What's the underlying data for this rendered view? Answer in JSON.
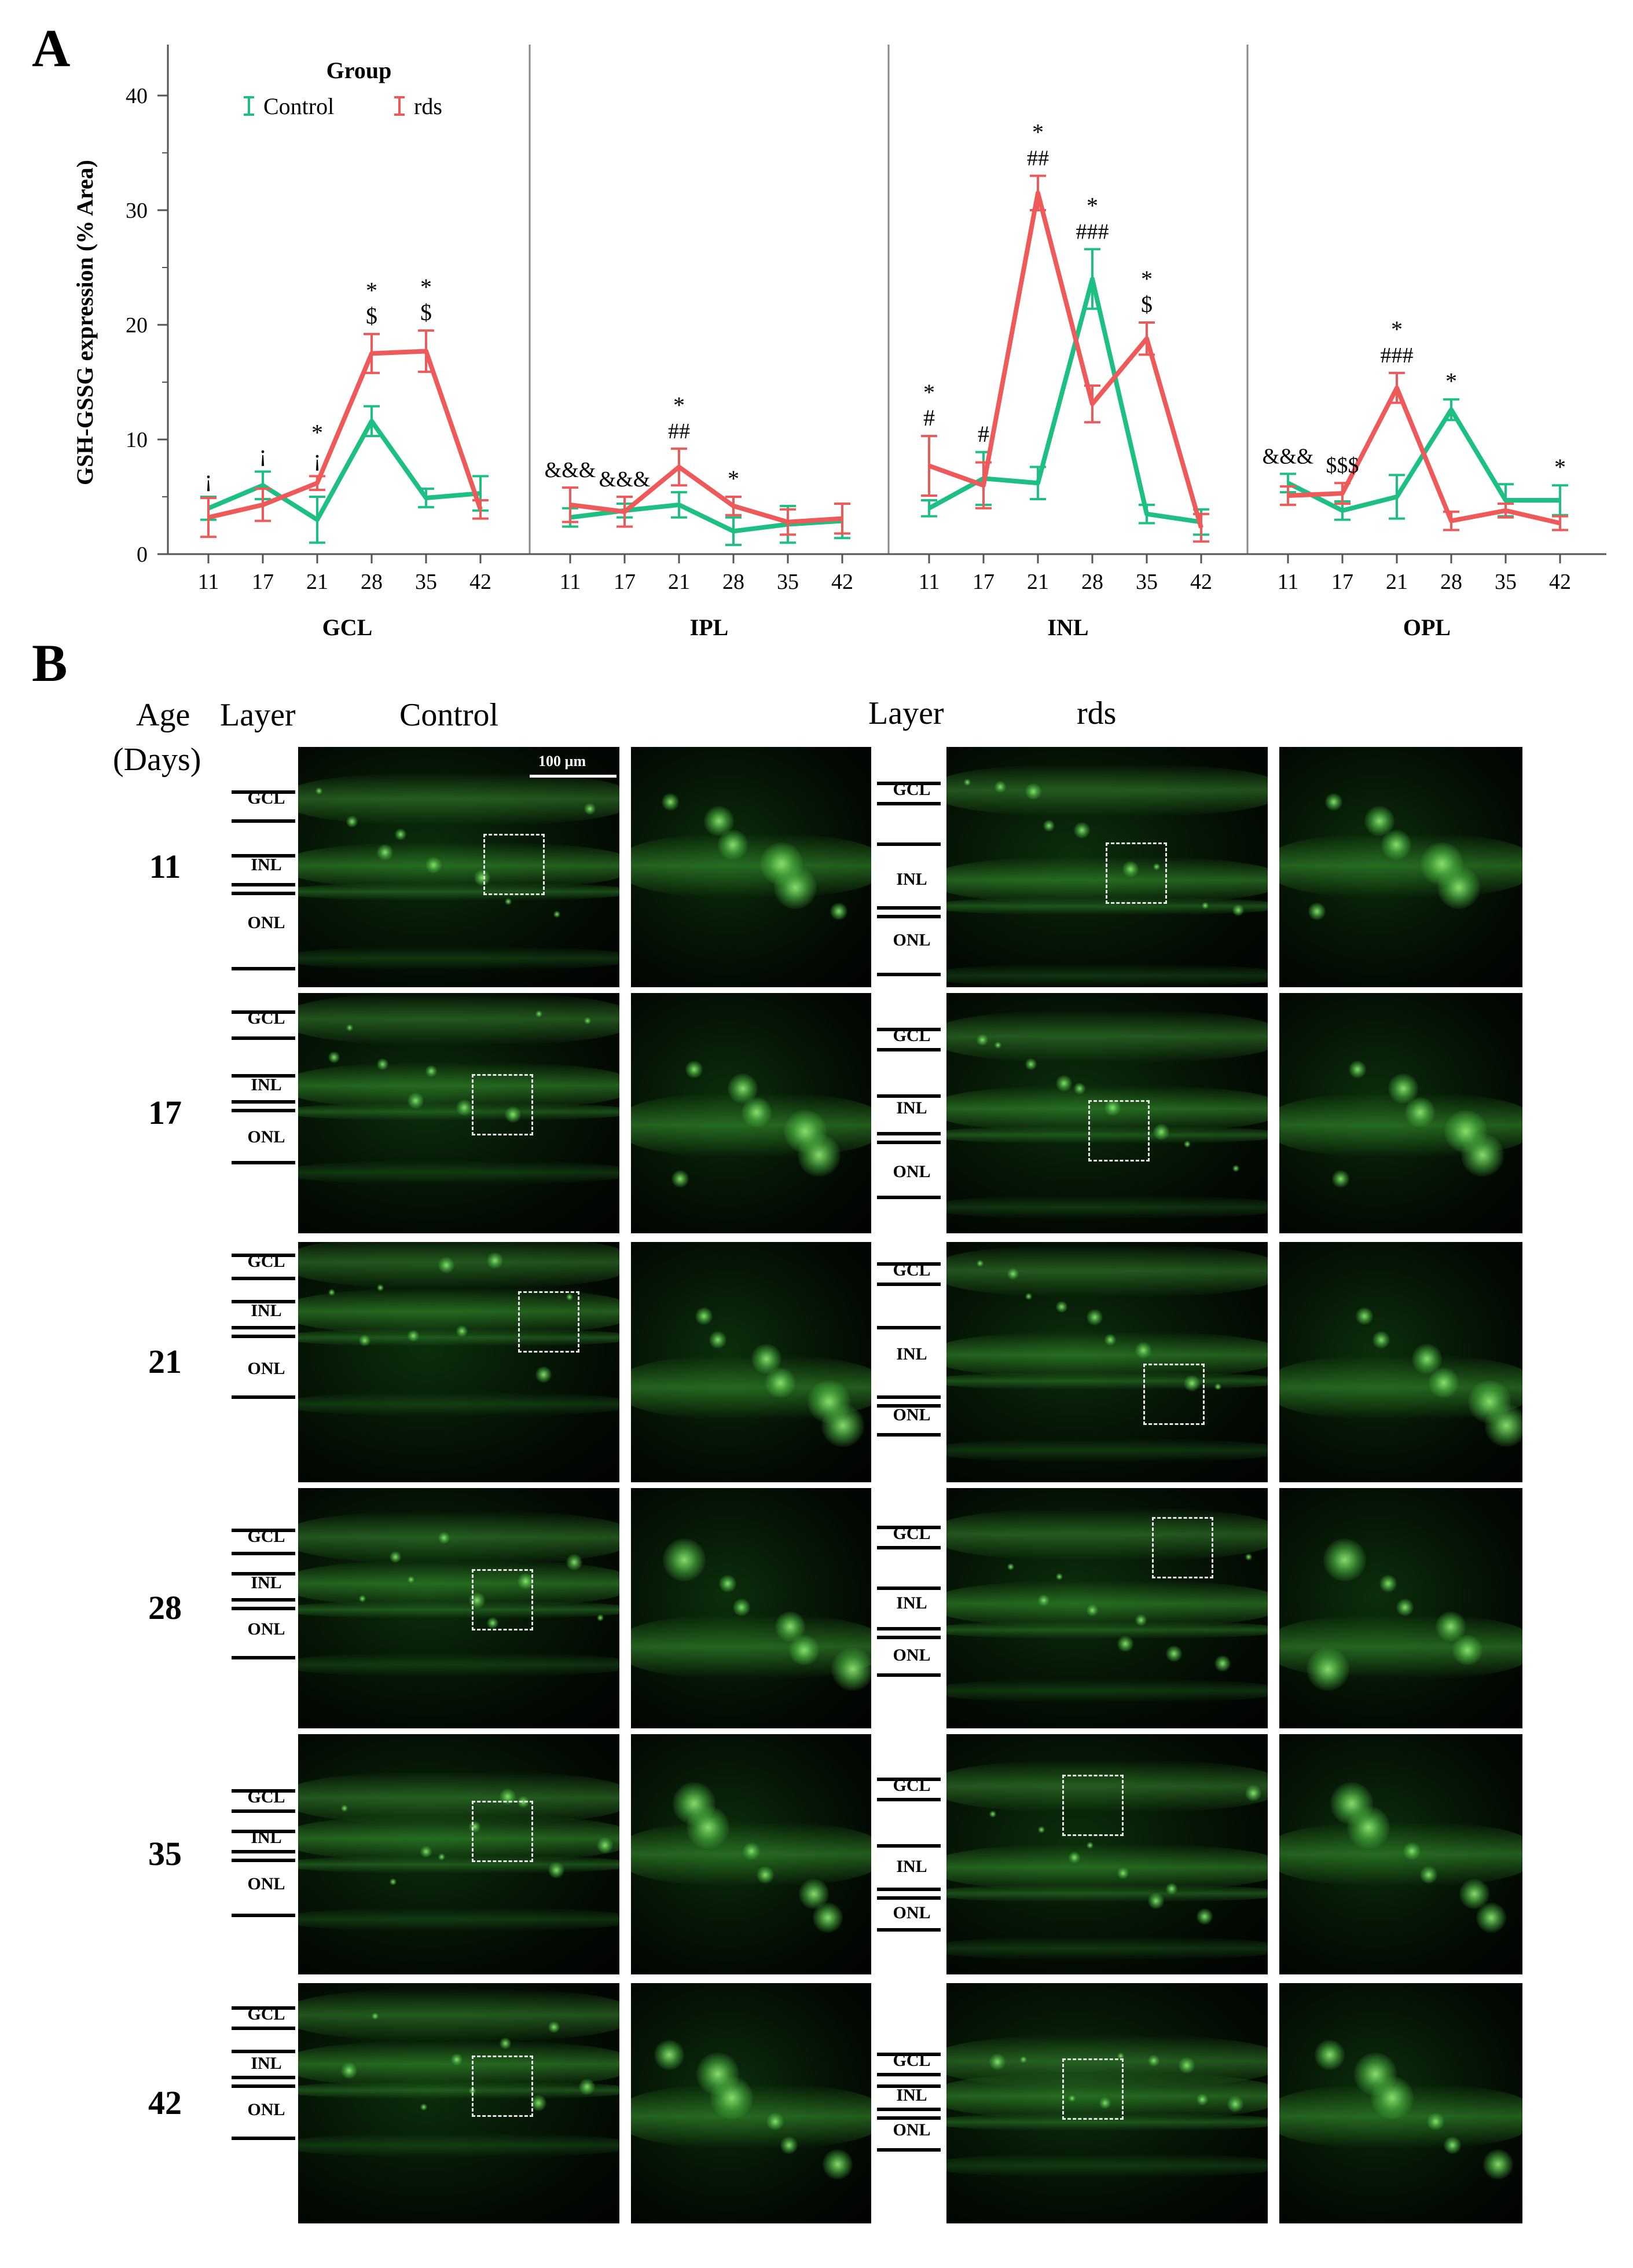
{
  "chart_data": {
    "type": "line",
    "panel_label": "A",
    "ylabel": "GSH-GSSG expression (% Area)",
    "ylim": [
      0,
      45
    ],
    "yticks": [
      0,
      10,
      20,
      30,
      40
    ],
    "categories": [
      "11",
      "17",
      "21",
      "28",
      "35",
      "42"
    ],
    "legend": {
      "title": "Group",
      "position": "top-left",
      "entries": [
        "Control",
        "rds"
      ]
    },
    "colors": {
      "Control": "#1dbf83",
      "rds": "#ee5a5a"
    },
    "facets": [
      {
        "name": "GCL",
        "series": [
          {
            "name": "Control",
            "values": [
              4.0,
              6.0,
              3.0,
              11.6,
              4.9,
              5.3
            ],
            "errors": [
              1.0,
              1.2,
              2.0,
              1.3,
              0.8,
              1.5
            ]
          },
          {
            "name": "rds",
            "values": [
              3.2,
              4.3,
              6.2,
              17.5,
              17.7,
              3.9
            ],
            "errors": [
              1.7,
              1.4,
              0.6,
              1.7,
              1.8,
              0.8
            ]
          }
        ],
        "annotations": [
          {
            "category": "11",
            "lines": [
              "¡"
            ]
          },
          {
            "category": "17",
            "lines": [
              "¡"
            ]
          },
          {
            "category": "21",
            "lines": [
              "*",
              "¡"
            ]
          },
          {
            "category": "28",
            "lines": [
              "*",
              "$"
            ]
          },
          {
            "category": "35",
            "lines": [
              "*",
              "$"
            ]
          }
        ]
      },
      {
        "name": "IPL",
        "series": [
          {
            "name": "Control",
            "values": [
              3.2,
              3.8,
              4.3,
              2.0,
              2.6,
              2.9
            ],
            "errors": [
              0.8,
              0.6,
              1.1,
              1.2,
              1.6,
              1.5
            ]
          },
          {
            "name": "rds",
            "values": [
              4.3,
              3.7,
              7.6,
              4.2,
              2.8,
              3.1
            ],
            "errors": [
              1.5,
              1.3,
              1.6,
              0.8,
              1.1,
              1.3
            ]
          }
        ],
        "annotations": [
          {
            "category": "11",
            "lines": [
              "&&&"
            ]
          },
          {
            "category": "17",
            "lines": [
              "&&&"
            ]
          },
          {
            "category": "21",
            "lines": [
              "*",
              "##"
            ]
          },
          {
            "category": "28",
            "lines": [
              "*"
            ]
          }
        ]
      },
      {
        "name": "INL",
        "series": [
          {
            "name": "Control",
            "values": [
              4.0,
              6.6,
              6.2,
              24.0,
              3.5,
              2.8
            ],
            "errors": [
              0.7,
              2.3,
              1.4,
              2.6,
              0.8,
              1.1
            ]
          },
          {
            "name": "rds",
            "values": [
              7.7,
              6.0,
              31.5,
              13.1,
              18.8,
              2.3
            ],
            "errors": [
              2.6,
              2.0,
              1.5,
              1.6,
              1.4,
              1.2
            ]
          }
        ],
        "annotations": [
          {
            "category": "11",
            "lines": [
              "*",
              "#"
            ]
          },
          {
            "category": "17",
            "lines": [
              "#"
            ]
          },
          {
            "category": "21",
            "lines": [
              "*",
              "##"
            ]
          },
          {
            "category": "28",
            "lines": [
              "*",
              "###"
            ]
          },
          {
            "category": "35",
            "lines": [
              "*",
              "$"
            ]
          }
        ]
      },
      {
        "name": "OPL",
        "series": [
          {
            "name": "Control",
            "values": [
              6.2,
              3.8,
              5.0,
              12.6,
              4.7,
              4.7
            ],
            "errors": [
              0.8,
              0.8,
              1.9,
              0.9,
              1.4,
              1.3
            ]
          },
          {
            "name": "rds",
            "values": [
              5.1,
              5.3,
              14.5,
              2.9,
              3.8,
              2.7
            ],
            "errors": [
              0.8,
              0.9,
              1.3,
              0.8,
              0.6,
              0.6
            ]
          }
        ],
        "annotations": [
          {
            "category": "11",
            "lines": [
              "&&&"
            ]
          },
          {
            "category": "17",
            "lines": [
              "$$$"
            ]
          },
          {
            "category": "21",
            "lines": [
              "*",
              "###"
            ]
          },
          {
            "category": "28",
            "lines": [
              "*"
            ]
          },
          {
            "category": "42",
            "lines": [
              "*"
            ]
          }
        ]
      }
    ]
  },
  "panel_b": {
    "panel_label": "B",
    "header": {
      "age_label": "Age",
      "days_label": "(Days)",
      "layer_label_control": "Layer",
      "control_title": "Control",
      "layer_label_rds": "Layer",
      "rds_title": "rds"
    },
    "scale_bar_label": "100 µm",
    "layer_names": {
      "gcl": "GCL",
      "inl": "INL",
      "onl": "ONL"
    },
    "ages": [
      "11",
      "17",
      "21",
      "28",
      "35",
      "42"
    ]
  }
}
